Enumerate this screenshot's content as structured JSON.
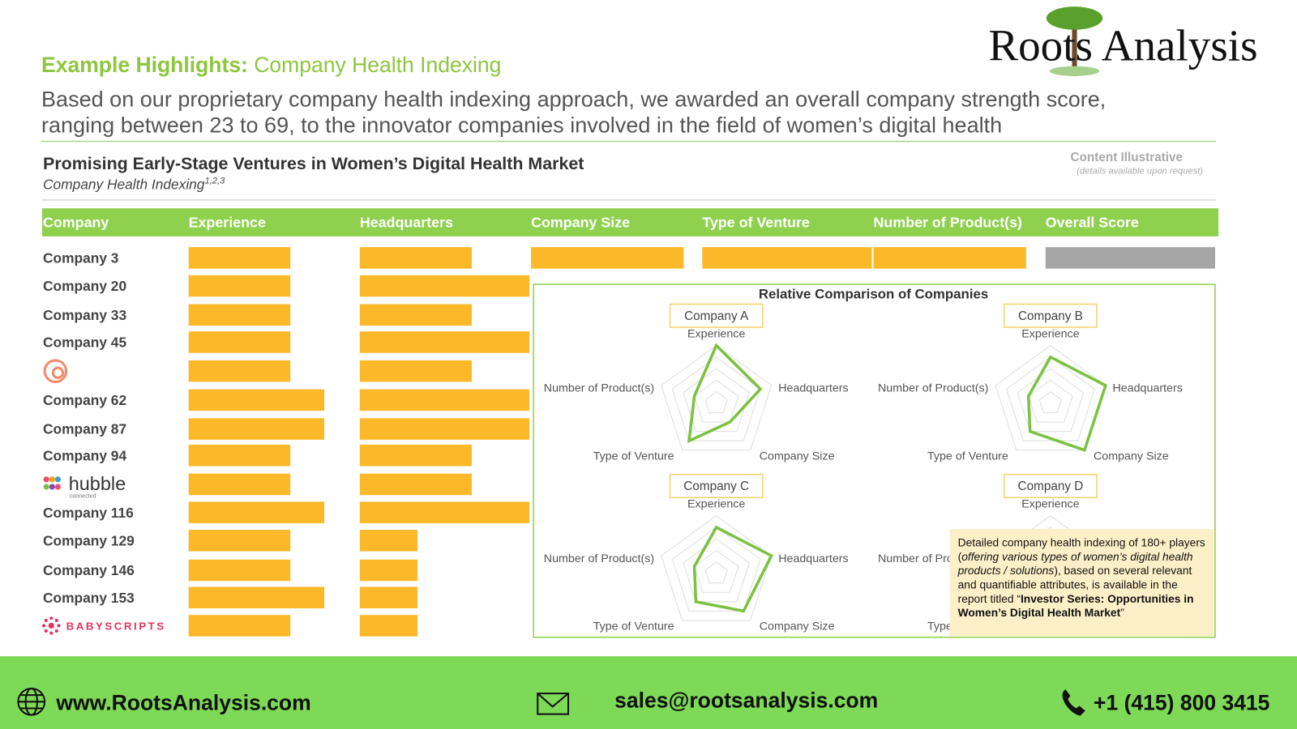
{
  "header": {
    "logo": "Roots Analysis",
    "title_bold": "Example Highlights:",
    "title_rest": "Company Health Indexing",
    "description": [
      "Based on our proprietary company health indexing approach, we awarded an overall company strength score,",
      "ranging between 23 to 69, to the innovator companies involved in the field of women’s digital health"
    ]
  },
  "panel": {
    "title": "Promising Early-Stage Ventures in Women’s Digital Health Market",
    "subtitle": "Company Health Indexing",
    "subtitle_sup": "1,2,3",
    "note": "Content Illustrative",
    "note_sub": "(details available upon request)"
  },
  "table": {
    "max_score": 5,
    "columns": [
      "Company",
      "Experience",
      "Headquarters",
      "Company Size",
      "Type of Venture",
      "Number of Product(s)",
      "Overall Score"
    ],
    "rows": [
      {
        "label": "Company 3",
        "scores": [
          3,
          3.3,
          4.5,
          5,
          4.5,
          5
        ]
      },
      {
        "label": "Company 20",
        "scores": [
          3,
          5,
          null,
          null,
          null,
          null
        ]
      },
      {
        "label": "Company 33",
        "scores": [
          3,
          3.3,
          null,
          null,
          null,
          null
        ]
      },
      {
        "label": "Company 45",
        "scores": [
          3,
          5,
          null,
          null,
          null,
          null
        ]
      },
      {
        "label": null,
        "scores": [
          3,
          3.3,
          null,
          null,
          null,
          null
        ]
      },
      {
        "label": "Company 62",
        "scores": [
          4,
          5,
          null,
          null,
          null,
          null
        ]
      },
      {
        "label": "Company 87",
        "scores": [
          4,
          5,
          null,
          null,
          null,
          null
        ]
      },
      {
        "label": "Company 94",
        "scores": [
          3,
          3.3,
          null,
          null,
          null,
          null
        ]
      },
      {
        "label": "hubble",
        "sublabel": "connected",
        "scores": [
          3,
          3.3,
          null,
          null,
          null,
          null
        ]
      },
      {
        "label": "Company 116",
        "scores": [
          4,
          5,
          null,
          null,
          null,
          null
        ]
      },
      {
        "label": "Company 129",
        "scores": [
          3,
          1.7,
          null,
          null,
          null,
          null
        ]
      },
      {
        "label": "Company 146",
        "scores": [
          3,
          1.7,
          null,
          null,
          null,
          null
        ]
      },
      {
        "label": "Company 153",
        "scores": [
          4,
          1.7,
          null,
          null,
          null,
          null
        ]
      },
      {
        "label": "BABYSCRIPTS",
        "scores": [
          3,
          1.7,
          null,
          null,
          null,
          null
        ]
      }
    ]
  },
  "radar": {
    "title": "Relative Comparison of Companies",
    "max": 5,
    "axes": [
      "Experience",
      "Headquarters",
      "Company Size",
      "Type of Venture",
      "Number of Product(s)"
    ],
    "charts": [
      {
        "name": "Company A",
        "values": [
          5,
          4,
          2,
          4,
          2
        ]
      },
      {
        "name": "Company B",
        "values": [
          4,
          5,
          5,
          3,
          2
        ]
      },
      {
        "name": "Company C",
        "values": [
          4,
          5,
          4,
          3,
          2
        ]
      },
      {
        "name": "Company D",
        "values": [
          null,
          null,
          null,
          null,
          null
        ]
      }
    ]
  },
  "callout": [
    {
      "text": "Detailed company health indexing of 180+ players (",
      "style": "normal"
    },
    {
      "text": "offering various types of women’s digital health products / solutions",
      "style": "italic"
    },
    {
      "text": "), based on several relevant and quantifiable attributes, is available in the report titled “",
      "style": "normal"
    },
    {
      "text": "Investor Series: Opportunities in Women’s Digital Health Market",
      "style": "bold"
    },
    {
      "text": "”",
      "style": "normal"
    }
  ],
  "footer": {
    "website": "www.RootsAnalysis.com",
    "email": "sales@rootsanalysis.com",
    "phone": "+1 (415) 800 3415"
  }
}
